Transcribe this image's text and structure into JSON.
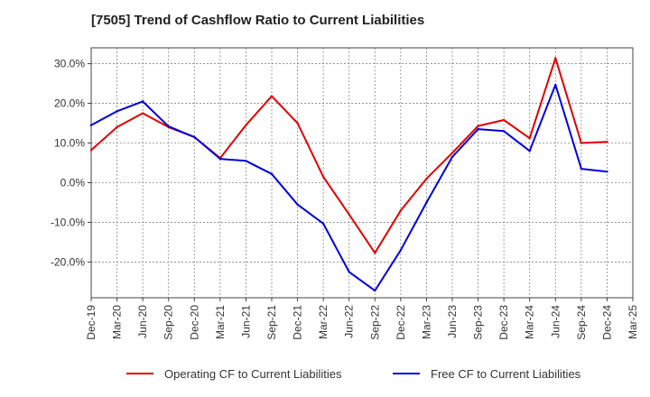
{
  "chart_data": {
    "type": "line",
    "title": "[7505]  Trend of Cashflow Ratio to Current Liabilities",
    "xlabel": "",
    "ylabel": "",
    "categories": [
      "Dec-19",
      "Mar-20",
      "Jun-20",
      "Sep-20",
      "Dec-20",
      "Mar-21",
      "Jun-21",
      "Sep-21",
      "Dec-21",
      "Mar-22",
      "Jun-22",
      "Sep-22",
      "Dec-22",
      "Mar-23",
      "Jun-23",
      "Sep-23",
      "Dec-23",
      "Mar-24",
      "Jun-24",
      "Sep-24",
      "Dec-24",
      "Mar-25"
    ],
    "y_ticks": [
      30,
      20,
      10,
      0,
      -10,
      -20
    ],
    "y_tick_labels": [
      "30.0%",
      "20.0%",
      "10.0%",
      "0.0%",
      "-10.0%",
      "-20.0%"
    ],
    "ylim": [
      -29,
      34
    ],
    "grid": true,
    "legend_position": "bottom",
    "series": [
      {
        "name": "Operating CF to Current Liabilities",
        "color": "#e00000",
        "values": [
          8.2,
          14.0,
          17.5,
          14.0,
          11.5,
          6.2,
          14.5,
          21.8,
          15.0,
          1.5,
          -8.0,
          -17.7,
          -7.0,
          1.0,
          7.5,
          14.3,
          15.8,
          11.2,
          31.4,
          10.0,
          10.3,
          null
        ]
      },
      {
        "name": "Free CF to Current Liabilities",
        "color": "#0000dd",
        "values": [
          14.5,
          18.0,
          20.5,
          14.2,
          11.5,
          6.0,
          5.5,
          2.2,
          -5.5,
          -10.3,
          -22.5,
          -27.2,
          -17.0,
          -5.0,
          6.5,
          13.5,
          13.0,
          8.0,
          24.7,
          3.5,
          2.8,
          null
        ]
      }
    ]
  }
}
